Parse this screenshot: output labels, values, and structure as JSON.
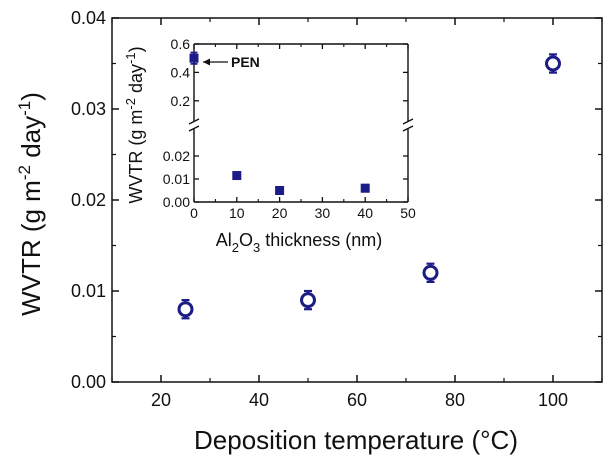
{
  "colors": {
    "marker": "#1c1c86",
    "axis": "#111111",
    "background": "#ffffff"
  },
  "chart_data": [
    {
      "type": "scatter",
      "title": "",
      "xlabel": "Deposition temperature (°C)",
      "ylabel_parts": [
        "WVTR (g m",
        "-2",
        " day",
        "-1",
        ")"
      ],
      "xlim": [
        10,
        110
      ],
      "ylim": [
        0,
        0.04
      ],
      "xticks": [
        20,
        40,
        60,
        80,
        100
      ],
      "yticks": [
        0.0,
        0.01,
        0.02,
        0.03,
        0.04
      ],
      "xtick_labels": [
        "20",
        "40",
        "60",
        "80",
        "100"
      ],
      "ytick_labels": [
        "0.00",
        "0.01",
        "0.02",
        "0.03",
        "0.04"
      ],
      "marker": "open-circle",
      "grid": false,
      "series": [
        {
          "x": [
            25,
            50,
            75,
            100
          ],
          "y": [
            0.008,
            0.009,
            0.012,
            0.035
          ],
          "yerr": [
            0.001,
            0.001,
            0.001,
            0.001
          ]
        }
      ]
    },
    {
      "type": "scatter",
      "title": "",
      "placement": "inset top-left",
      "xlabel_parts": [
        "Al",
        "2",
        "O",
        "3",
        " thickness (nm)"
      ],
      "ylabel_parts": [
        "WVTR (g m",
        "-2",
        " day",
        "-1",
        ")"
      ],
      "xlim": [
        0,
        50
      ],
      "xticks": [
        0,
        10,
        20,
        30,
        40,
        50
      ],
      "xtick_labels": [
        "0",
        "10",
        "20",
        "30",
        "40",
        "50"
      ],
      "y_broken_axis": true,
      "ylim_lower": [
        0,
        0.03
      ],
      "ylim_upper": [
        0.1,
        0.6
      ],
      "yticks_lower": [
        0.0,
        0.01,
        0.02
      ],
      "ytick_labels_lower": [
        "0.00",
        "0.01",
        "0.02"
      ],
      "yticks_upper": [
        0.2,
        0.4,
        0.6
      ],
      "ytick_labels_upper": [
        "0.2",
        "0.4",
        "0.6"
      ],
      "marker": "filled-square",
      "grid": false,
      "series": [
        {
          "x": [
            0,
            10,
            20,
            40
          ],
          "y": [
            0.5,
            0.0115,
            0.005,
            0.006
          ],
          "yerr": [
            0.04,
            0.0015,
            0.0015,
            0.0015
          ]
        }
      ],
      "annotations": [
        {
          "text": "PEN",
          "x": 0,
          "y": 0.5,
          "arrow": "left"
        }
      ]
    }
  ]
}
